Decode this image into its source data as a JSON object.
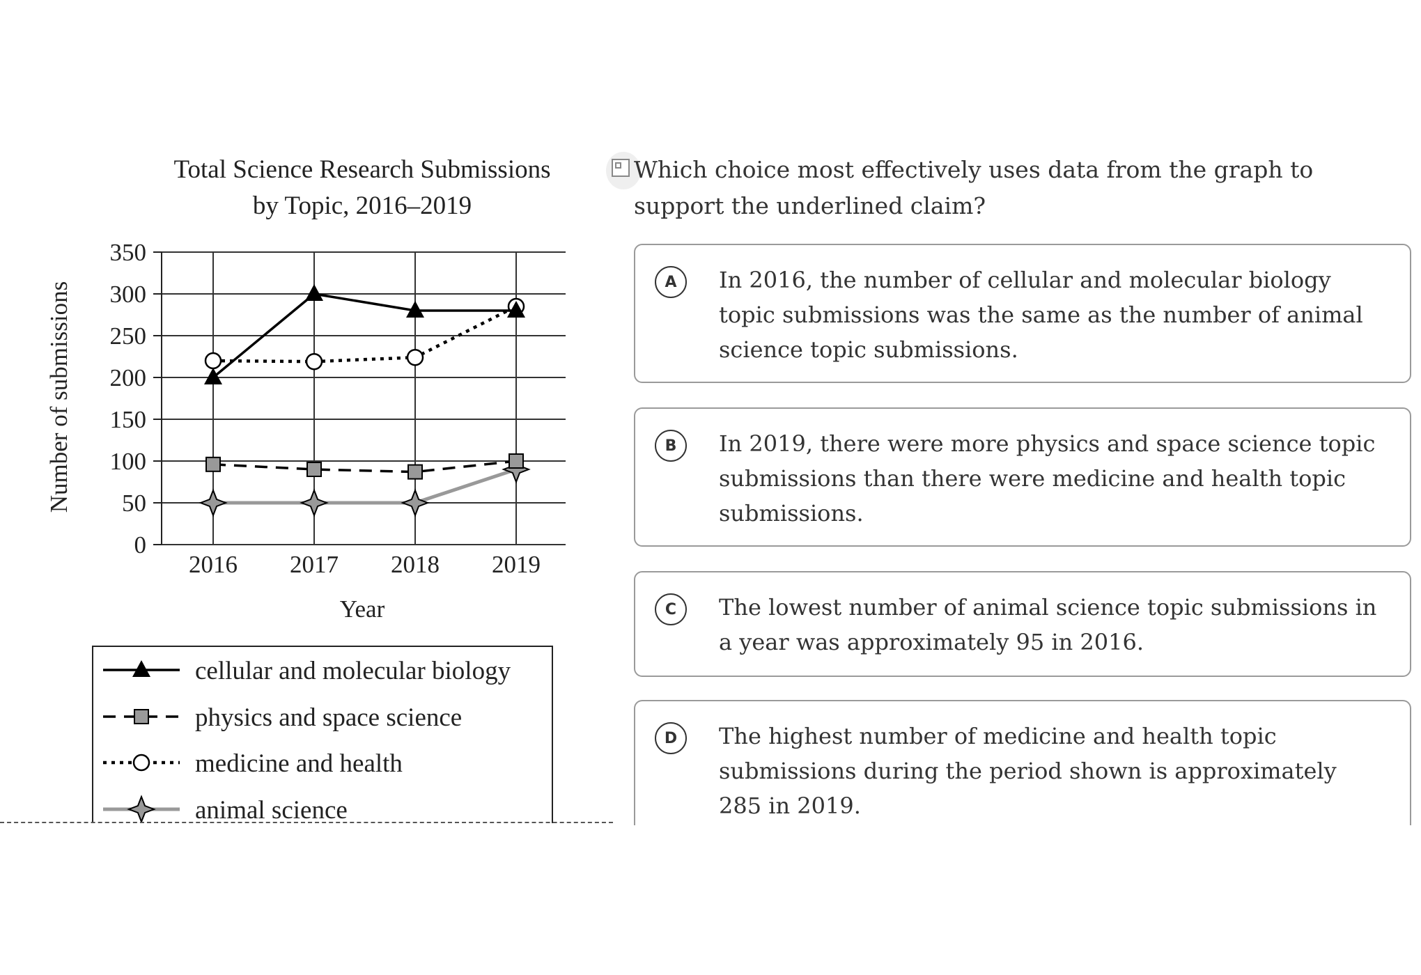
{
  "chart_data": {
    "type": "line",
    "title": [
      "Total Science Research Submissions",
      "by Topic, 2016–2019"
    ],
    "xlabel": "Year",
    "ylabel": "Number of submissions",
    "x": [
      "2016",
      "2017",
      "2018",
      "2019"
    ],
    "ylim": [
      0,
      350
    ],
    "yticks": [
      0,
      50,
      100,
      150,
      200,
      250,
      300,
      350
    ],
    "grid": true,
    "legend_position": "bottom",
    "series": [
      {
        "name": "cellular and molecular biology",
        "values": [
          200,
          300,
          280,
          280
        ],
        "marker": "triangle",
        "line": "solid",
        "color": "#000000"
      },
      {
        "name": "physics and space science",
        "values": [
          96,
          90,
          87,
          100
        ],
        "marker": "square",
        "line": "dashed",
        "color": "#000000"
      },
      {
        "name": "medicine and health",
        "values": [
          220,
          219,
          224,
          285
        ],
        "marker": "circle",
        "line": "dotted",
        "color": "#000000"
      },
      {
        "name": "animal science",
        "values": [
          50,
          50,
          50,
          90
        ],
        "marker": "star",
        "line": "solid",
        "color": "#999999"
      }
    ]
  },
  "question": {
    "prompt": "Which choice most effectively uses data from the graph to support the underlined claim?"
  },
  "choices": [
    {
      "letter": "A",
      "text": "In 2016, the number of cellular and molecular biology topic submissions was the same as the number of animal science topic submissions."
    },
    {
      "letter": "B",
      "text": "In 2019, there were more physics and space science topic submissions than there were medicine and health topic submissions."
    },
    {
      "letter": "C",
      "text": "The lowest number of animal science topic submissions in a year was approximately 95 in 2016."
    },
    {
      "letter": "D",
      "text": "The highest number of medicine and health topic submissions during the period shown is approximately 285 in 2019."
    }
  ]
}
